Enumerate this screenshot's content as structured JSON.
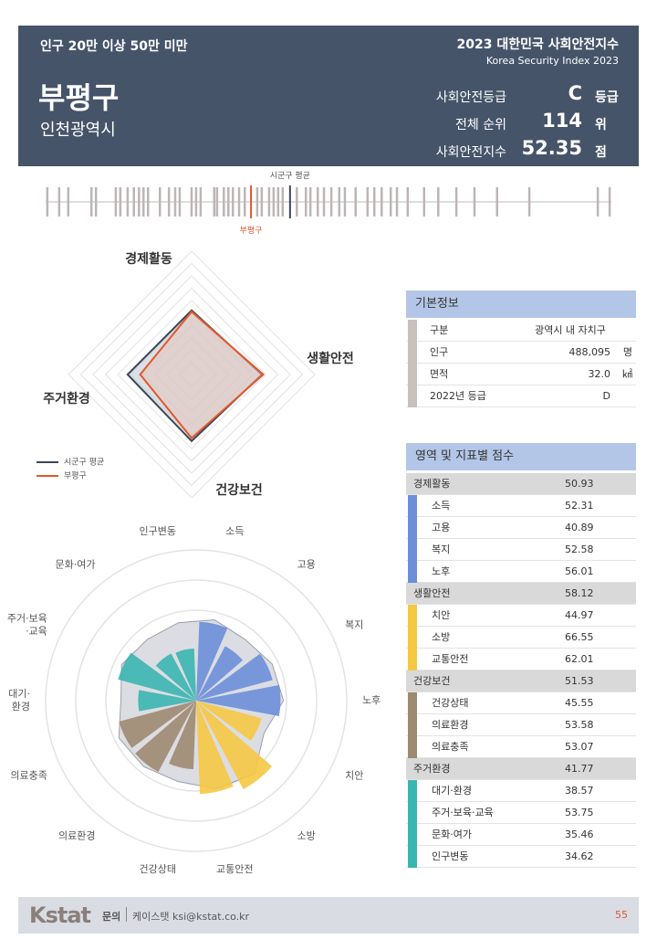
{
  "header": {
    "group": "인구 20만 이상 50만 미만",
    "report_title": "2023 대한민국 사회안전지수",
    "report_subtitle": "Korea Security Index 2023",
    "name": "부평구",
    "region": "인천광역시",
    "stats": [
      {
        "label": "사회안전등급",
        "value": "C",
        "unit": "등급"
      },
      {
        "label": "전체 순위",
        "value": 114,
        "unit": "위"
      },
      {
        "label": "사회안전지수",
        "value": 52.35,
        "unit": "점"
      }
    ]
  },
  "strip": {
    "avg_label": "시군구 평균",
    "self_label": "부평구",
    "xlim": [
      0,
      100
    ],
    "values": [
      0.3,
      2.4,
      4.0,
      8.1,
      8.9,
      12.4,
      13.2,
      14.5,
      15.6,
      16.5,
      17.3,
      18.1,
      20.2,
      21.8,
      22.9,
      23.7,
      25.8,
      26.6,
      27.4,
      29.8,
      30.3,
      31.5,
      32.3,
      33.1,
      34.2,
      35.2,
      37.4,
      38.2,
      39.5,
      40.3,
      41.1,
      41.9,
      44.4,
      46.0,
      46.8,
      48.1,
      49.2,
      50.5,
      51.9,
      52.9,
      54.8,
      56.9,
      58.1,
      59.4,
      61.0,
      62.1,
      64.0,
      66.9,
      69.4,
      72.6,
      75.8,
      79.8,
      85.5,
      97.6,
      99.7
    ],
    "avg": 43.2,
    "self": 36.3,
    "color": "#bdb5b5",
    "avg_color": "#3c4656",
    "self_color": "#e2582b"
  },
  "radar": {
    "axes": [
      "경제활동",
      "생활안전",
      "건강보건",
      "주거환경"
    ],
    "rlim": [
      0,
      100
    ],
    "rticks": [
      10,
      20,
      30,
      40,
      50,
      60,
      70,
      80,
      90,
      100
    ],
    "series": [
      {
        "name": "시군구 평균",
        "color": "#3c4656",
        "values": [
          52,
          57,
          54,
          52
        ]
      },
      {
        "name": "부평구",
        "color": "#e2582b",
        "values": [
          50.93,
          58.12,
          51.53,
          41.77
        ]
      }
    ]
  },
  "rose": {
    "labels": [
      [
        "소득"
      ],
      [
        "고용"
      ],
      [
        "복지"
      ],
      [
        "노후"
      ],
      [
        "치안"
      ],
      [
        "소방"
      ],
      [
        "교통안전"
      ],
      [
        "건강상태"
      ],
      [
        "의료환경"
      ],
      [
        "의료충족"
      ],
      [
        "대기·",
        "환경"
      ],
      [
        "주거·보육",
        "·교육"
      ],
      [
        "문화·여가"
      ],
      [
        "인구변동"
      ]
    ],
    "avg": [
      55,
      52,
      56,
      58,
      50,
      62,
      60,
      55,
      56,
      57,
      50,
      55,
      52,
      53
    ],
    "rlim": [
      0,
      100
    ],
    "rticks": [
      20,
      40,
      60,
      80,
      100
    ]
  },
  "basic_info": {
    "title": "기본정보",
    "rows": [
      {
        "label": "구분",
        "value": "광역시 내 자치구"
      },
      {
        "label": "인구",
        "value": "488,095",
        "unit": "명"
      },
      {
        "label": "면적",
        "value": "32.0",
        "unit": "㎢"
      },
      {
        "label": "2022년 등급",
        "value": "D"
      }
    ]
  },
  "scores": {
    "title": "영역 및 지표별 점수",
    "groups": [
      {
        "name": "경제활동",
        "score": 50.93,
        "color": "#6c8fd8",
        "items": [
          {
            "name": "소득",
            "value": 52.31
          },
          {
            "name": "고용",
            "value": 40.89
          },
          {
            "name": "복지",
            "value": 52.58
          },
          {
            "name": "노후",
            "value": 56.01
          }
        ]
      },
      {
        "name": "생활안전",
        "score": 58.12,
        "color": "#f5c842",
        "items": [
          {
            "name": "치안",
            "value": 44.97
          },
          {
            "name": "소방",
            "value": 66.55
          },
          {
            "name": "교통안전",
            "value": 62.01
          }
        ]
      },
      {
        "name": "건강보건",
        "score": 51.53,
        "color": "#9e8a70",
        "items": [
          {
            "name": "건강상태",
            "value": 45.55
          },
          {
            "name": "의료환경",
            "value": 53.58
          },
          {
            "name": "의료충족",
            "value": 53.07
          }
        ]
      },
      {
        "name": "주거환경",
        "score": 41.77,
        "color": "#3bb5b0",
        "items": [
          {
            "name": "대기·환경",
            "value": 38.57
          },
          {
            "name": "주거·보육·교육",
            "value": 53.75
          },
          {
            "name": "문화·여가",
            "value": 35.46
          },
          {
            "name": "인구변동",
            "value": 34.62
          }
        ]
      }
    ]
  },
  "footer": {
    "logo": "Kstat",
    "contact_label": "문의",
    "contact": "케이스탯 ksi@kstat.co.kr",
    "page": 55
  }
}
